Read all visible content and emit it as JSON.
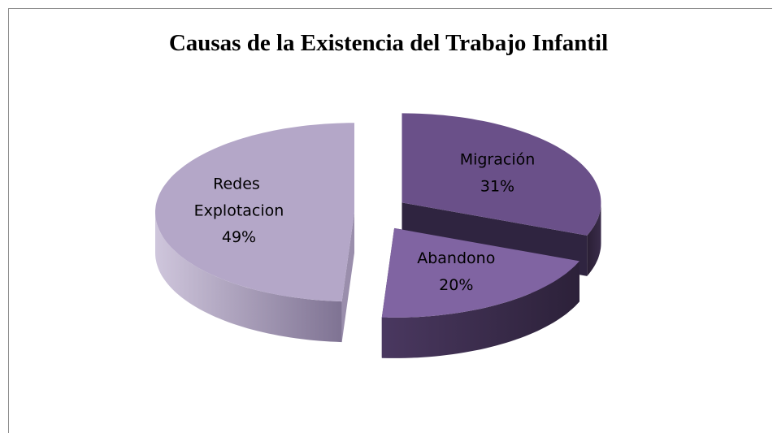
{
  "chart_data": {
    "type": "pie",
    "title": "Causas de la Existencia del Trabajo Infantil",
    "categories": [
      "Migración",
      "Abandono",
      "Redes Explotacion"
    ],
    "values": [
      31,
      20,
      49
    ],
    "value_labels": [
      "31%",
      "20%",
      "49%"
    ],
    "colors": [
      "#6a5089",
      "#8064a2",
      "#b4a7c8"
    ]
  }
}
